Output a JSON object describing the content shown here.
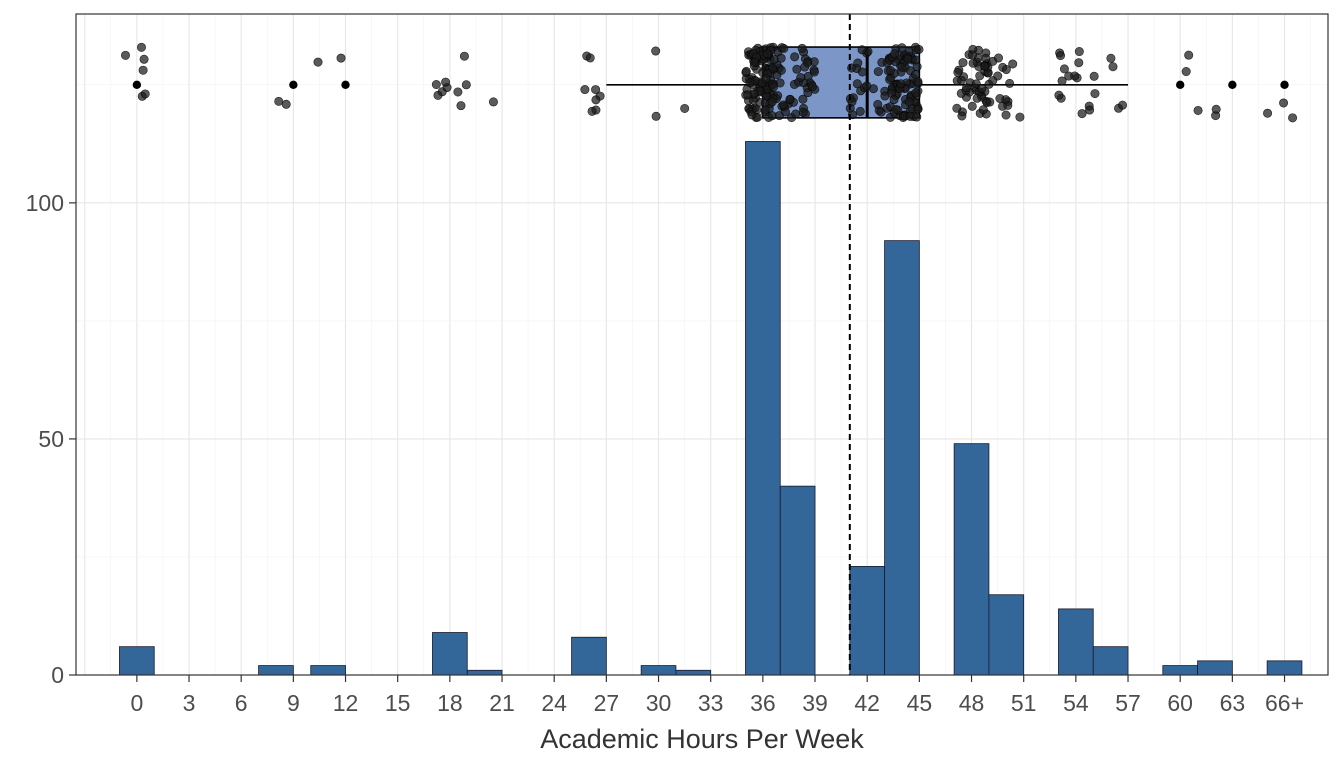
{
  "chart_data": {
    "type": "bar",
    "xlabel": "Academic Hours Per Week",
    "ylabel": "",
    "title": "",
    "ylim": [
      0,
      140
    ],
    "xlim": [
      -3.5,
      68.5
    ],
    "grid": true,
    "x_ticks": [
      {
        "value": 0,
        "label": "0"
      },
      {
        "value": 3,
        "label": "3"
      },
      {
        "value": 6,
        "label": "6"
      },
      {
        "value": 9,
        "label": "9"
      },
      {
        "value": 12,
        "label": "12"
      },
      {
        "value": 15,
        "label": "15"
      },
      {
        "value": 18,
        "label": "18"
      },
      {
        "value": 21,
        "label": "21"
      },
      {
        "value": 24,
        "label": "24"
      },
      {
        "value": 27,
        "label": "27"
      },
      {
        "value": 30,
        "label": "30"
      },
      {
        "value": 33,
        "label": "33"
      },
      {
        "value": 36,
        "label": "36"
      },
      {
        "value": 39,
        "label": "39"
      },
      {
        "value": 42,
        "label": "42"
      },
      {
        "value": 45,
        "label": "45"
      },
      {
        "value": 48,
        "label": "48"
      },
      {
        "value": 51,
        "label": "51"
      },
      {
        "value": 54,
        "label": "54"
      },
      {
        "value": 57,
        "label": "57"
      },
      {
        "value": 60,
        "label": "60"
      },
      {
        "value": 63,
        "label": "63"
      },
      {
        "value": 66,
        "label": "66+"
      }
    ],
    "y_ticks": [
      {
        "value": 0,
        "label": "0"
      },
      {
        "value": 50,
        "label": "50"
      },
      {
        "value": 100,
        "label": "100"
      }
    ],
    "bins": [
      {
        "start": -1,
        "end": 1,
        "count": 6
      },
      {
        "start": 7,
        "end": 9,
        "count": 2
      },
      {
        "start": 10,
        "end": 12,
        "count": 2
      },
      {
        "start": 17,
        "end": 19,
        "count": 9
      },
      {
        "start": 19,
        "end": 21,
        "count": 1
      },
      {
        "start": 25,
        "end": 27,
        "count": 8
      },
      {
        "start": 29,
        "end": 31,
        "count": 2
      },
      {
        "start": 31,
        "end": 33,
        "count": 1
      },
      {
        "start": 35,
        "end": 37,
        "count": 113
      },
      {
        "start": 37,
        "end": 39,
        "count": 40
      },
      {
        "start": 41,
        "end": 43,
        "count": 23
      },
      {
        "start": 43,
        "end": 45,
        "count": 92
      },
      {
        "start": 47,
        "end": 49,
        "count": 49
      },
      {
        "start": 49,
        "end": 51,
        "count": 17
      },
      {
        "start": 53,
        "end": 55,
        "count": 14
      },
      {
        "start": 55,
        "end": 57,
        "count": 6
      },
      {
        "start": 59,
        "end": 61,
        "count": 2
      },
      {
        "start": 61,
        "end": 63,
        "count": 3
      },
      {
        "start": 65,
        "end": 67,
        "count": 3
      }
    ],
    "mean_line": 41,
    "boxplot": {
      "whisker_low": 27,
      "q1": 36,
      "median": 42,
      "q3": 45,
      "whisker_high": 57,
      "y_low": 118,
      "y_high": 133,
      "y_center": 125,
      "outliers": [
        0,
        9,
        12,
        60,
        63,
        66
      ]
    },
    "colors": {
      "bar_fill": "#336699",
      "bar_stroke": "#1a1a2e",
      "box_fill": "#7b96c7",
      "point": "#1a1a1a",
      "grid_major": "#e6e6e6",
      "grid_minor": "#f2f2f2",
      "panel_border": "#333333",
      "mean_line": "#000000"
    }
  }
}
